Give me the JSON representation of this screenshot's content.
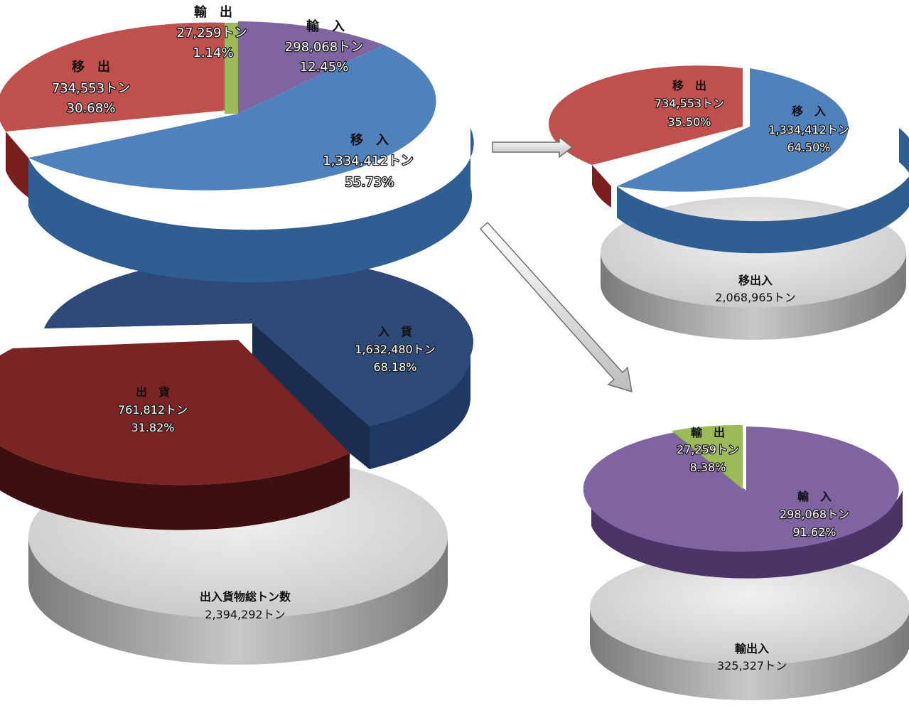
{
  "chart_data": [
    {
      "type": "pie",
      "slices": [
        {
          "label": "移　出",
          "value": 734553,
          "value_text": "734,553トン",
          "percent_text": "30.68%",
          "color": "#c0504d"
        },
        {
          "label": "輸　出",
          "value": 27259,
          "value_text": "27,259トン",
          "percent_text": "1.14%",
          "color": "#9bbb59"
        },
        {
          "label": "輸　入",
          "value": 298068,
          "value_text": "298,068トン",
          "percent_text": "12.45%",
          "color": "#8064a2"
        },
        {
          "label": "移　入",
          "value": 1334412,
          "value_text": "1,334,412トン",
          "percent_text": "55.73%",
          "color": "#4f81bd"
        }
      ]
    },
    {
      "type": "pie",
      "slices": [
        {
          "label": "入　貨",
          "value": 1632480,
          "value_text": "1,632,480トン",
          "percent_text": "68.18%",
          "color": "#1f3864"
        },
        {
          "label": "出　貨",
          "value": 761812,
          "value_text": "761,812トン",
          "percent_text": "31.82%",
          "color": "#6b1f1f"
        }
      ],
      "total": {
        "label": "出入貨物総トン数",
        "value": 2394292,
        "value_text": "2,394,292トン"
      }
    },
    {
      "type": "pie",
      "slices": [
        {
          "label": "移　出",
          "value": 734553,
          "value_text": "734,553トン",
          "percent_text": "35.50%",
          "color": "#c0504d"
        },
        {
          "label": "移　入",
          "value": 1334412,
          "value_text": "1,334,412トン",
          "percent_text": "64.50%",
          "color": "#4f81bd"
        }
      ],
      "total": {
        "label": "移出入",
        "value": 2068965,
        "value_text": "2,068,965トン"
      }
    },
    {
      "type": "pie",
      "slices": [
        {
          "label": "輸　出",
          "value": 27259,
          "value_text": "27,259トン",
          "percent_text": "8.38%",
          "color": "#9bbb59"
        },
        {
          "label": "輸　入",
          "value": 298068,
          "value_text": "298,068トン",
          "percent_text": "91.62%",
          "color": "#8064a2"
        }
      ],
      "total": {
        "label": "輸出入",
        "value": 325327,
        "value_text": "325,327トン"
      }
    }
  ],
  "colors": {
    "gray_base": "#9a9a9a",
    "gray_top": "#d9d9d9"
  }
}
